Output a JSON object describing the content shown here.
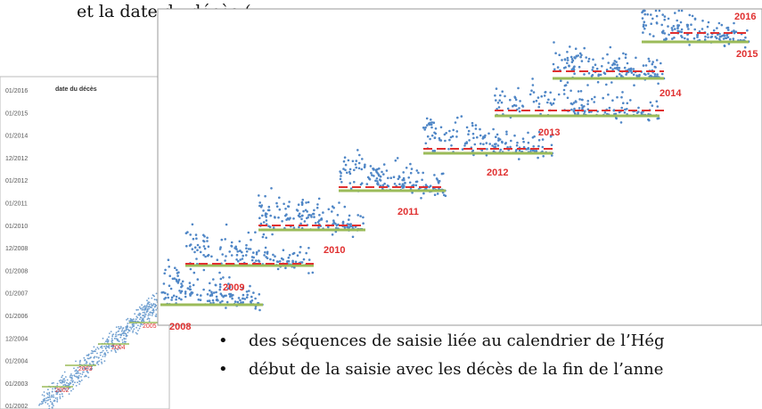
{
  "heading": "et la date du décès (",
  "small_chart": {
    "title": "date du décès",
    "y_labels": [
      "01/2016",
      "01/2015",
      "01/2014",
      "12/2012",
      "01/2012",
      "01/2011",
      "01/2010",
      "12/2008",
      "01/2008",
      "01/2007",
      "01/2006",
      "12/2004",
      "01/2004",
      "01/2003",
      "01/2002"
    ],
    "year_labels": [
      "2002",
      "2003",
      "2004",
      "2005"
    ]
  },
  "large_chart": {
    "year_labels": [
      "2008",
      "2009",
      "2010",
      "2011",
      "2012",
      "2013",
      "2014",
      "2015",
      "2016"
    ]
  },
  "bullets": [
    "des séquences de saisie liée au calendrier de l’Hég",
    "début de la saisie avec les décès de la fin de l’anne"
  ]
}
